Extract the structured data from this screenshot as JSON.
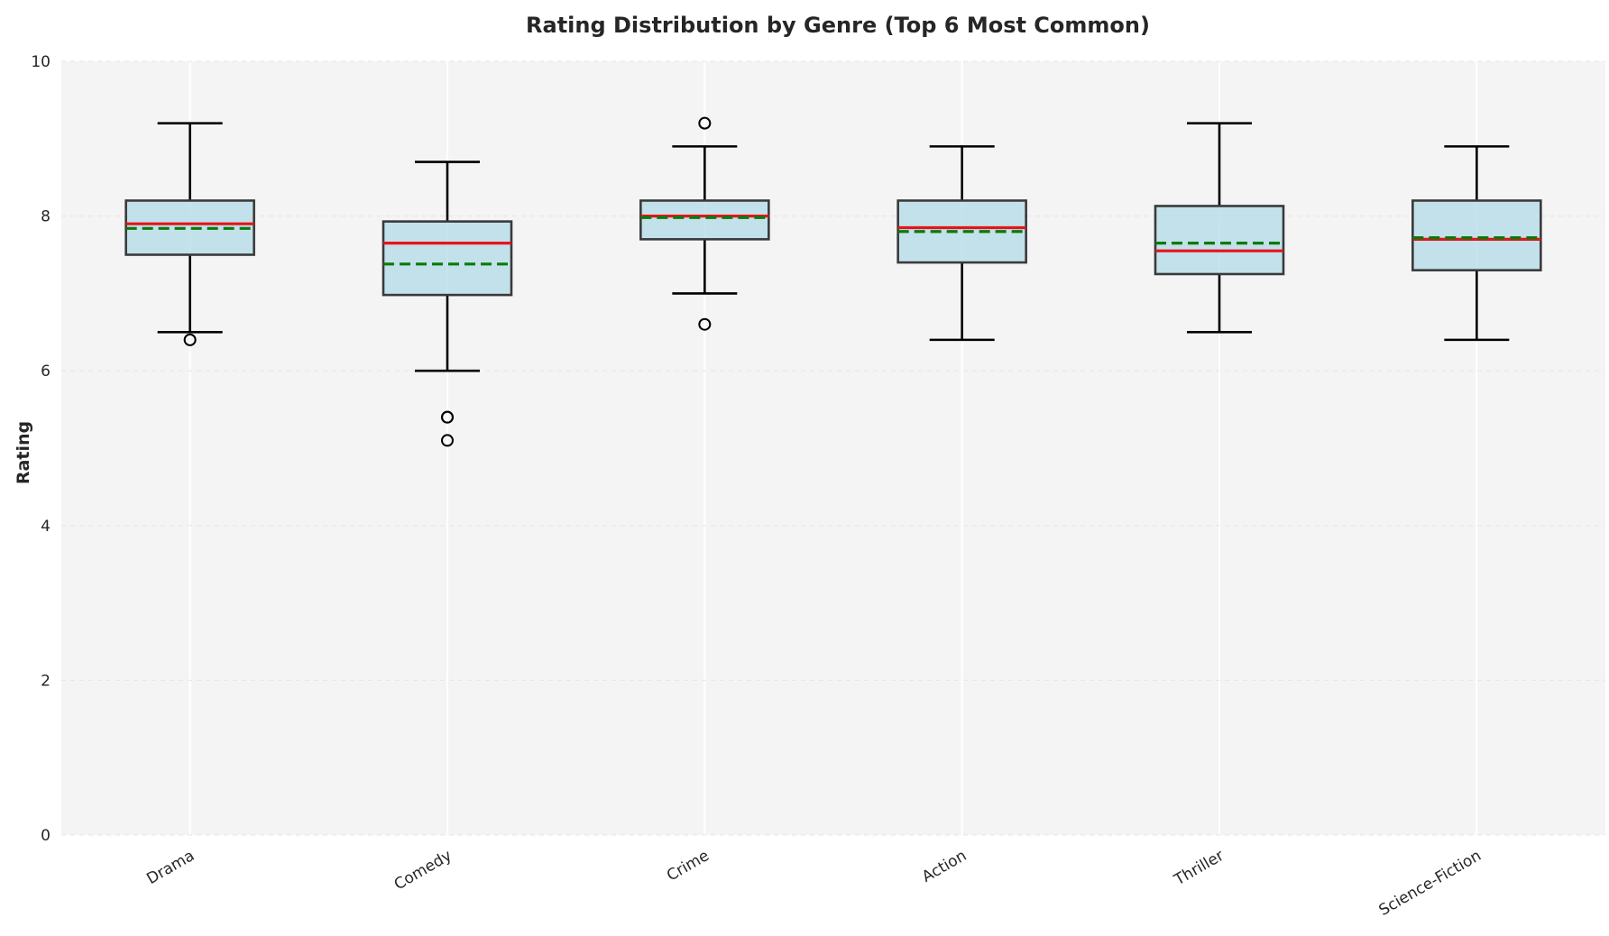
{
  "chart_data": {
    "type": "box",
    "title": "Rating Distribution by Genre (Top 6 Most Common)",
    "xlabel": "",
    "ylabel": "Rating",
    "ylim": [
      0,
      10
    ],
    "yticks": [
      0,
      2,
      4,
      6,
      8,
      10
    ],
    "grid": true,
    "categories": [
      "Drama",
      "Comedy",
      "Crime",
      "Action",
      "Thriller",
      "Science-Fiction"
    ],
    "boxes": [
      {
        "name": "Drama",
        "whisker_low": 6.5,
        "q1": 7.5,
        "median": 7.9,
        "mean": 7.84,
        "q3": 8.2,
        "whisker_high": 9.2,
        "outliers": [
          6.4
        ]
      },
      {
        "name": "Comedy",
        "whisker_low": 6.0,
        "q1": 6.98,
        "median": 7.65,
        "mean": 7.38,
        "q3": 7.93,
        "whisker_high": 8.7,
        "outliers": [
          5.4,
          5.4,
          5.1
        ]
      },
      {
        "name": "Crime",
        "whisker_low": 7.0,
        "q1": 7.7,
        "median": 8.0,
        "mean": 7.98,
        "q3": 8.2,
        "whisker_high": 8.9,
        "outliers": [
          9.2,
          6.6
        ]
      },
      {
        "name": "Action",
        "whisker_low": 6.4,
        "q1": 7.4,
        "median": 7.85,
        "mean": 7.8,
        "q3": 8.2,
        "whisker_high": 8.9,
        "outliers": []
      },
      {
        "name": "Thriller",
        "whisker_low": 6.5,
        "q1": 7.25,
        "median": 7.55,
        "mean": 7.65,
        "q3": 8.13,
        "whisker_high": 9.2,
        "outliers": []
      },
      {
        "name": "Science-Fiction",
        "whisker_low": 6.4,
        "q1": 7.3,
        "median": 7.7,
        "mean": 7.72,
        "q3": 8.2,
        "whisker_high": 8.9,
        "outliers": []
      }
    ],
    "colors": {
      "box_fill": "#add8e6",
      "box_edge": "#3a3a3a",
      "median": "#e8131a",
      "mean": "#0a7a0a",
      "whisker": "#000000",
      "plot_bg": "#f4f4f4",
      "grid": "#ffffff"
    }
  }
}
